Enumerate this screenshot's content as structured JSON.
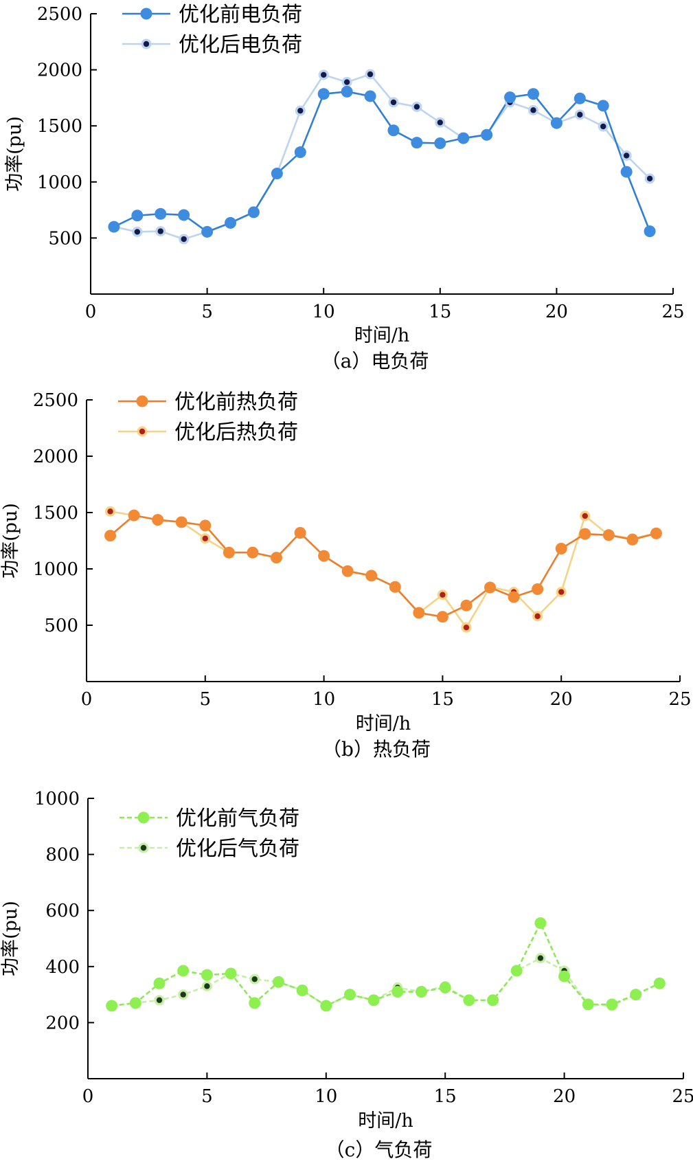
{
  "chart_data": [
    {
      "type": "line",
      "caption": "（a）电负荷",
      "xlabel": "时间/h",
      "ylabel": "功率(pu)",
      "xlim": [
        0,
        25
      ],
      "ylim": [
        0,
        2500
      ],
      "xticks": [
        0,
        5,
        10,
        15,
        20,
        25
      ],
      "yticks": [
        500,
        1000,
        1500,
        2000,
        2500
      ],
      "legend_position": "top-left",
      "series": [
        {
          "name": "优化前电负荷",
          "color": "#2f7fd6",
          "marker_color": "#3d8ce0",
          "marker": "large-circle",
          "dashed": false,
          "x": [
            1,
            2,
            3,
            4,
            5,
            6,
            7,
            8,
            9,
            10,
            11,
            12,
            13,
            14,
            15,
            16,
            17,
            18,
            19,
            20,
            21,
            22,
            23,
            24
          ],
          "values": [
            600,
            700,
            715,
            705,
            555,
            635,
            730,
            1075,
            1265,
            1785,
            1805,
            1765,
            1460,
            1350,
            1345,
            1390,
            1420,
            1755,
            1785,
            1525,
            1745,
            1680,
            1090,
            560
          ]
        },
        {
          "name": "优化后电负荷",
          "color": "#bcd4ee",
          "marker_color": "#141b4a",
          "marker": "small-dot",
          "dashed": false,
          "x": [
            1,
            2,
            3,
            4,
            5,
            6,
            7,
            8,
            9,
            10,
            11,
            12,
            13,
            14,
            15,
            16,
            17,
            18,
            19,
            20,
            21,
            22,
            23,
            24
          ],
          "values": [
            600,
            555,
            560,
            490,
            555,
            635,
            730,
            1075,
            1635,
            1955,
            1890,
            1960,
            1710,
            1670,
            1530,
            1390,
            1425,
            1710,
            1640,
            1525,
            1600,
            1495,
            1235,
            1030
          ]
        }
      ]
    },
    {
      "type": "line",
      "caption": "（b）热负荷",
      "xlabel": "时间/h",
      "ylabel": "功率(pu)",
      "xlim": [
        0,
        25
      ],
      "ylim": [
        0,
        2500
      ],
      "xticks": [
        0,
        5,
        10,
        15,
        20,
        25
      ],
      "yticks": [
        500,
        1000,
        1500,
        2000,
        2500
      ],
      "legend_position": "top-left",
      "series": [
        {
          "name": "优化前热负荷",
          "color": "#ee7d2a",
          "marker_color": "#f28a35",
          "marker": "large-circle",
          "dashed": false,
          "x": [
            1,
            2,
            3,
            4,
            5,
            6,
            7,
            8,
            9,
            10,
            11,
            12,
            13,
            14,
            15,
            16,
            17,
            18,
            19,
            20,
            21,
            22,
            23,
            24
          ],
          "values": [
            1295,
            1475,
            1435,
            1415,
            1385,
            1145,
            1145,
            1100,
            1320,
            1115,
            980,
            940,
            840,
            610,
            575,
            675,
            835,
            750,
            820,
            1180,
            1310,
            1300,
            1260,
            1315
          ]
        },
        {
          "name": "优化后热负荷",
          "color": "#f6d283",
          "marker_color": "#b11f1f",
          "marker": "small-dot",
          "dashed": false,
          "x": [
            1,
            2,
            3,
            4,
            5,
            6,
            7,
            8,
            9,
            10,
            11,
            12,
            13,
            14,
            15,
            16,
            17,
            18,
            19,
            20,
            21,
            22,
            23,
            24
          ],
          "values": [
            1510,
            1475,
            1435,
            1415,
            1270,
            1145,
            1145,
            1100,
            1320,
            1115,
            980,
            940,
            840,
            610,
            770,
            480,
            840,
            795,
            580,
            795,
            1470,
            1300,
            1270,
            1315
          ]
        }
      ]
    },
    {
      "type": "line",
      "caption": "（c）气负荷",
      "xlabel": "时间/h",
      "ylabel": "功率(pu)",
      "xlim": [
        0,
        25
      ],
      "ylim": [
        0,
        1000
      ],
      "xticks": [
        0,
        5,
        10,
        15,
        20,
        25
      ],
      "yticks": [
        200,
        400,
        600,
        800,
        1000
      ],
      "legend_position": "top-left",
      "series": [
        {
          "name": "优化前气负荷",
          "color": "#8ee85a",
          "marker_color": "#8ef050",
          "marker": "large-circle",
          "dashed": true,
          "x": [
            1,
            2,
            3,
            4,
            5,
            6,
            7,
            8,
            9,
            10,
            11,
            12,
            13,
            14,
            15,
            16,
            17,
            18,
            19,
            20,
            21,
            22,
            23,
            24
          ],
          "values": [
            260,
            270,
            340,
            385,
            370,
            375,
            270,
            345,
            315,
            260,
            300,
            280,
            310,
            310,
            325,
            280,
            280,
            385,
            555,
            365,
            265,
            265,
            300,
            340
          ]
        },
        {
          "name": "优化后气负荷",
          "color": "#c6eea7",
          "marker_color": "#1c3a1b",
          "marker": "small-dot",
          "dashed": true,
          "x": [
            1,
            2,
            3,
            4,
            5,
            6,
            7,
            8,
            9,
            10,
            11,
            12,
            13,
            14,
            15,
            16,
            17,
            18,
            19,
            20,
            21,
            22,
            23,
            24
          ],
          "values": [
            260,
            270,
            280,
            300,
            330,
            375,
            355,
            345,
            315,
            260,
            300,
            280,
            325,
            310,
            330,
            280,
            280,
            385,
            430,
            385,
            265,
            260,
            300,
            340
          ]
        }
      ]
    }
  ]
}
